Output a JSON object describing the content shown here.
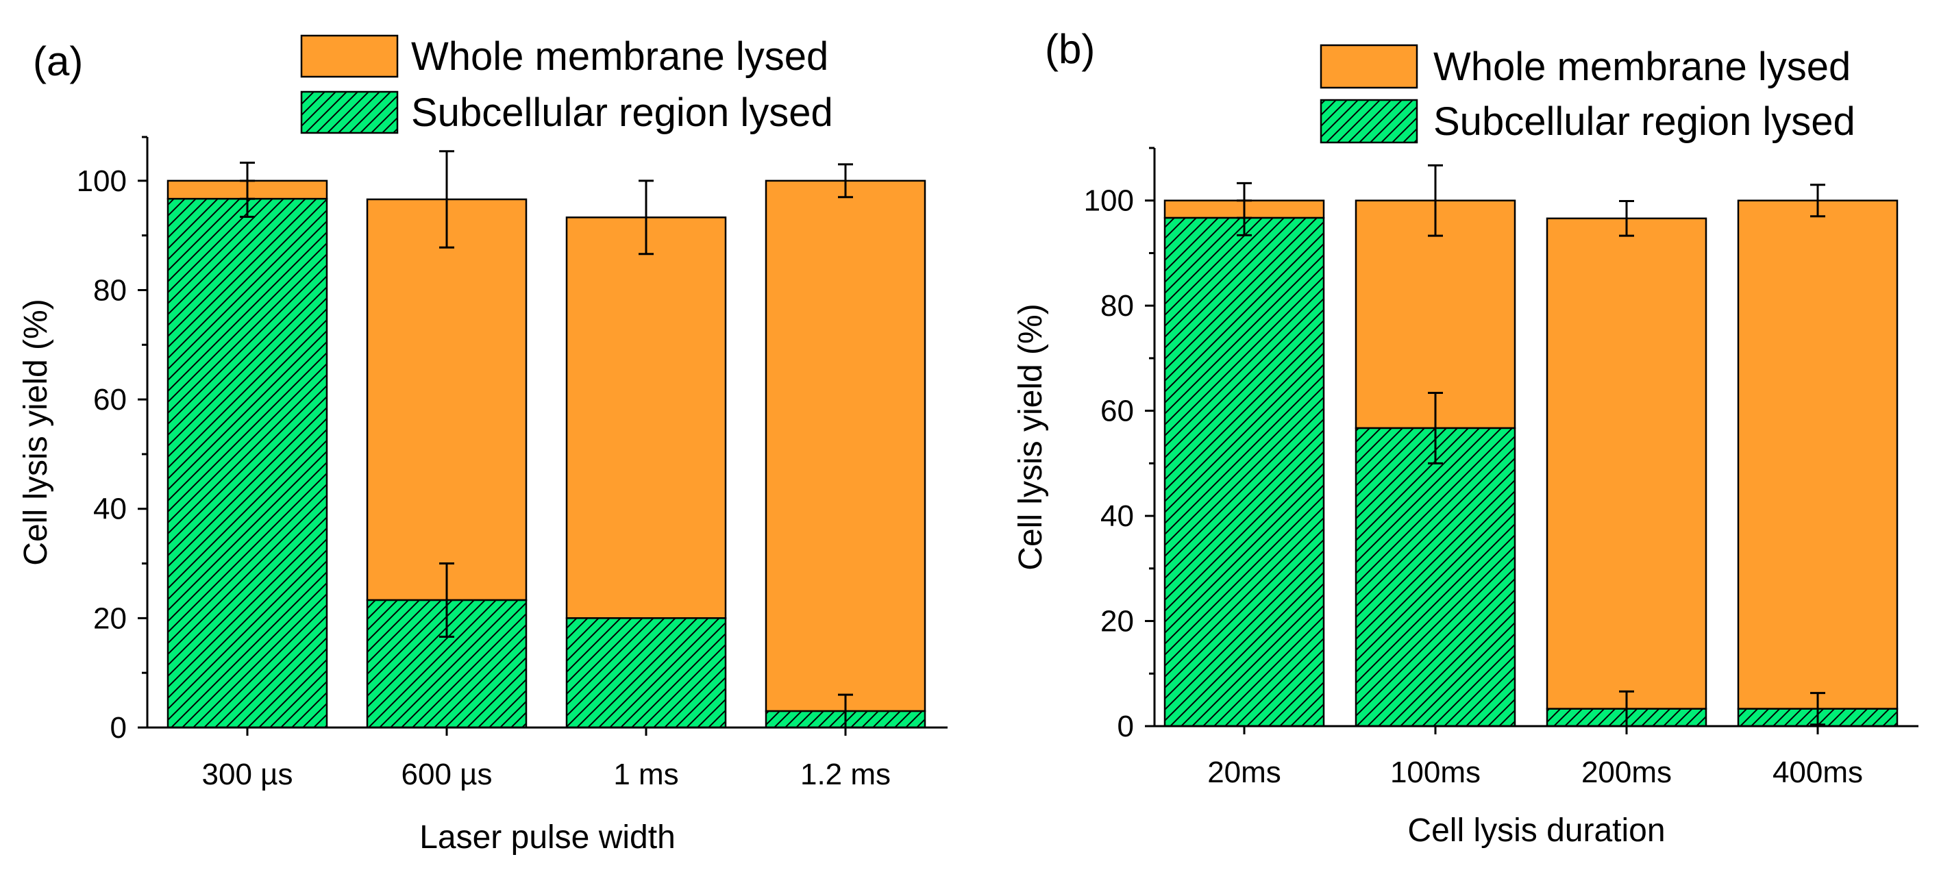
{
  "chart_data": [
    {
      "panel": "(a)",
      "type": "bar",
      "stacked": true,
      "categories": [
        "300 µs",
        "600 µs",
        "1 ms",
        "1.2 ms"
      ],
      "series": [
        {
          "name": "Subcellular region lysed",
          "values": [
            96.7,
            23.3,
            20.0,
            3.0
          ],
          "errors": [
            3.3,
            6.7,
            0,
            3.0
          ],
          "color": "#00ee77",
          "pattern": "hatch"
        },
        {
          "name": "Whole membrane lysed",
          "values": [
            3.3,
            73.3,
            73.3,
            97.0
          ],
          "errors": [
            3.3,
            8.8,
            6.7,
            3.0
          ],
          "color": "#ff9e2e",
          "pattern": "solid"
        }
      ],
      "legend_order": [
        "Whole membrane lysed",
        "Subcellular region lysed"
      ],
      "xlabel": "Laser pulse width",
      "ylabel": "Cell lysis yield (%)",
      "ylim": [
        0,
        108
      ],
      "yticks": [
        0,
        20,
        40,
        60,
        80,
        100
      ],
      "legend": "top-right",
      "grid": false
    },
    {
      "panel": "(b)",
      "type": "bar",
      "stacked": true,
      "categories": [
        "20ms",
        "100ms",
        "200ms",
        "400ms"
      ],
      "series": [
        {
          "name": "Subcellular region lysed",
          "values": [
            96.7,
            56.7,
            3.3,
            3.3
          ],
          "errors": [
            3.3,
            6.7,
            3.3,
            3.0
          ],
          "color": "#00ee77",
          "pattern": "hatch"
        },
        {
          "name": "Whole membrane lysed",
          "values": [
            3.3,
            43.3,
            93.3,
            96.7
          ],
          "errors": [
            3.3,
            6.7,
            3.3,
            3.0
          ],
          "color": "#ff9e2e",
          "pattern": "solid"
        }
      ],
      "legend_order": [
        "Whole membrane lysed",
        "Subcellular region lysed"
      ],
      "xlabel": "Cell lysis duration",
      "ylabel": "Cell lysis yield (%)",
      "ylim": [
        0,
        110
      ],
      "yticks": [
        0,
        20,
        40,
        60,
        80,
        100
      ],
      "legend": "top-right",
      "grid": false
    }
  ]
}
